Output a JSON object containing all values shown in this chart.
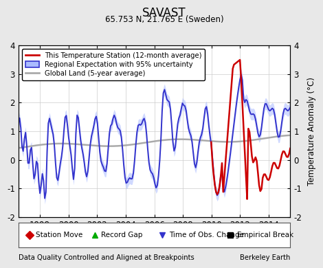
{
  "title": "SAVAST",
  "subtitle": "65.753 N, 21.765 E (Sweden)",
  "xlabel_bottom": "Data Quality Controlled and Aligned at Breakpoints",
  "xlabel_right": "Berkeley Earth",
  "ylabel": "Temperature Anomaly (°C)",
  "xlim": [
    1996.5,
    2015.5
  ],
  "ylim": [
    -2,
    4
  ],
  "yticks": [
    -2,
    -1,
    0,
    1,
    2,
    3,
    4
  ],
  "xticks": [
    1998,
    2000,
    2002,
    2004,
    2006,
    2008,
    2010,
    2012,
    2014
  ],
  "background_color": "#e8e8e8",
  "plot_bg_color": "#ffffff",
  "regional_color": "#3333cc",
  "regional_shade_color": "#aabbff",
  "station_color": "#cc0000",
  "global_color": "#aaaaaa",
  "legend_items": [
    {
      "label": "This Temperature Station (12-month average)",
      "color": "#cc0000",
      "lw": 2
    },
    {
      "label": "Regional Expectation with 95% uncertainty",
      "color": "#3333cc",
      "lw": 2
    },
    {
      "label": "Global Land (5-year average)",
      "color": "#aaaaaa",
      "lw": 2
    }
  ],
  "marker_legend": [
    {
      "label": "Station Move",
      "marker": "D",
      "color": "#cc0000"
    },
    {
      "label": "Record Gap",
      "marker": "^",
      "color": "#00aa00"
    },
    {
      "label": "Time of Obs. Change",
      "marker": "v",
      "color": "#3333cc"
    },
    {
      "label": "Empirical Break",
      "marker": "s",
      "color": "#000000"
    }
  ]
}
